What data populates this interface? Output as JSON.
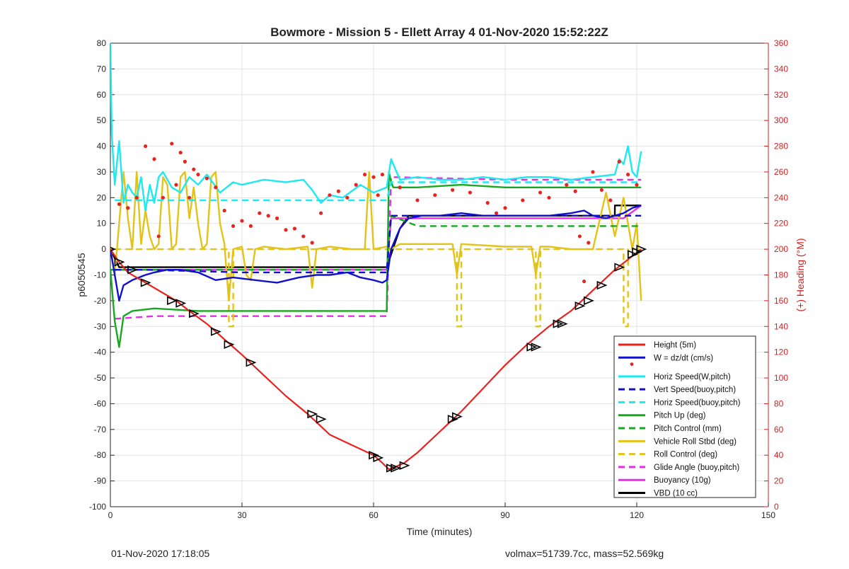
{
  "footer": {
    "left": "01-Nov-2020 17:18:05",
    "right": "volmax=51739.7cc, mass=52.569kg"
  },
  "chart_data": {
    "type": "line",
    "title": "Bowmore - Mission 5 - Ellett Array 4 01-Nov-2020 15:52:22Z",
    "xlabel": "Time (minutes)",
    "ylabel": "p6050545",
    "y2label": "(+) Heading (°M)",
    "xlim": [
      0,
      150
    ],
    "ylim": [
      -100,
      80
    ],
    "y2lim": [
      0,
      360
    ],
    "xticks": [
      0,
      30,
      60,
      90,
      120,
      150
    ],
    "yticks": [
      -100,
      -90,
      -80,
      -70,
      -60,
      -50,
      -40,
      -30,
      -20,
      -10,
      0,
      10,
      20,
      30,
      40,
      50,
      60,
      70,
      80
    ],
    "y2ticks": [
      0,
      20,
      40,
      60,
      80,
      100,
      120,
      140,
      160,
      180,
      200,
      220,
      240,
      260,
      280,
      300,
      320,
      340,
      360
    ],
    "grid": true,
    "legend_position": "bottom-right",
    "colors": {
      "red": "#e8231f",
      "blue": "#1111cc",
      "cyan": "#1ee8f0",
      "green": "#16a81e",
      "yellow": "#e3c21a",
      "magenta": "#e430e4",
      "black": "#000000",
      "right_axis": "#d42020"
    },
    "series": [
      {
        "name": "Height (5m)",
        "color": "red",
        "style": "solid",
        "x": [
          0,
          2,
          4,
          8,
          12,
          15,
          18,
          22,
          26,
          30,
          35,
          40,
          45,
          50,
          55,
          60,
          62,
          63.5,
          65,
          67,
          70,
          75,
          80,
          85,
          90,
          95,
          100,
          105,
          110,
          115,
          118,
          121
        ],
        "y": [
          0,
          -5,
          -9,
          -13,
          -17,
          -20,
          -24,
          -29,
          -35,
          -41,
          -49,
          -57,
          -64,
          -72,
          -76,
          -80,
          -83,
          -85.5,
          -84.5,
          -83,
          -79,
          -71,
          -63,
          -54,
          -45,
          -37,
          -30,
          -24,
          -16,
          -8,
          -4,
          0
        ]
      },
      {
        "name": "W = dz/dt (cm/s)",
        "color": "blue",
        "style": "solid",
        "x": [
          0,
          1,
          2,
          3,
          5,
          8,
          10,
          13,
          16,
          20,
          24,
          28,
          33,
          38,
          43,
          47,
          50,
          54,
          57,
          60,
          62,
          63,
          64,
          66,
          68,
          71,
          75,
          80,
          85,
          90,
          95,
          100,
          105,
          108,
          110,
          113,
          115,
          117,
          119,
          121
        ],
        "y": [
          0,
          -10,
          -20,
          -14,
          -12,
          -10,
          -9,
          -8,
          -8,
          -9,
          -12,
          -11,
          -12,
          -13,
          -11,
          -10,
          -10,
          -9,
          -11,
          -12,
          -13,
          -12,
          0,
          8,
          12,
          13,
          13,
          14,
          13,
          13,
          13,
          13,
          14,
          15,
          13,
          12,
          13,
          14,
          16,
          17
        ]
      },
      {
        "name": "Horiz Speed(W,pitch)",
        "color": "cyan",
        "style": "solid",
        "x": [
          0,
          0.3,
          1,
          2,
          3,
          4,
          5,
          6,
          7,
          8,
          9,
          10,
          11,
          12,
          14,
          16,
          18,
          20,
          22,
          25,
          28,
          30,
          35,
          40,
          44,
          46,
          48,
          50,
          53,
          57,
          60,
          63,
          64,
          66,
          70,
          75,
          80,
          85,
          90,
          95,
          100,
          105,
          110,
          115,
          116,
          117,
          118,
          119,
          120,
          121
        ],
        "y": [
          80,
          45,
          25,
          42,
          18,
          25,
          22,
          20,
          28,
          15,
          25,
          18,
          28,
          30,
          24,
          22,
          28,
          25,
          29,
          22,
          26,
          25,
          27,
          26,
          27,
          23,
          18,
          21,
          20,
          25,
          22,
          24,
          35,
          27,
          28,
          27,
          27,
          28,
          27,
          28,
          28,
          27,
          28,
          29,
          35,
          33,
          40,
          30,
          28,
          38
        ]
      },
      {
        "name": "Vert Speed(buoy,pitch)",
        "color": "blue",
        "style": "dashed",
        "x": [
          1,
          8,
          30,
          63,
          64,
          121
        ],
        "y": [
          -8,
          -8,
          -9,
          -9,
          13,
          13
        ]
      },
      {
        "name": "Horiz Speed(buoy,pitch)",
        "color": "cyan",
        "style": "dashed",
        "x": [
          1,
          63,
          64,
          121
        ],
        "y": [
          19,
          19,
          26,
          26
        ]
      },
      {
        "name": "Pitch Up (deg)",
        "color": "green",
        "style": "solid",
        "x": [
          0,
          1,
          2,
          3,
          5,
          10,
          20,
          30,
          40,
          50,
          60,
          63,
          63.5,
          64,
          64.5,
          66,
          70,
          80,
          90,
          100,
          110,
          120,
          121
        ],
        "y": [
          -8,
          -28,
          -38,
          -26,
          -24,
          -23,
          -24,
          -24,
          -24,
          -24,
          -24,
          -24,
          30,
          26,
          24,
          24,
          24,
          25,
          24,
          24,
          24,
          24,
          24
        ]
      },
      {
        "name": "Pitch Control (mm)",
        "color": "green",
        "style": "dashed",
        "x": [
          0,
          63,
          64,
          70,
          121
        ],
        "y": [
          -8,
          -8,
          13,
          9,
          9
        ]
      },
      {
        "name": "Vehicle Roll Stbd (deg)",
        "color": "yellow",
        "style": "solid",
        "x": [
          0,
          1,
          2,
          3,
          4,
          5,
          6,
          7,
          8,
          9,
          10,
          11,
          12,
          13,
          14,
          15,
          16,
          17,
          18,
          19,
          20,
          21,
          22,
          23,
          24,
          25,
          26,
          27,
          28,
          30,
          31,
          32,
          33,
          35,
          40,
          45,
          46,
          47,
          50,
          55,
          58,
          59,
          60,
          63,
          64,
          66,
          70,
          78,
          79,
          80,
          90,
          96,
          97,
          98,
          100,
          105,
          110,
          113,
          115,
          117,
          119,
          120,
          121
        ],
        "y": [
          1,
          -10,
          10,
          30,
          12,
          0,
          30,
          2,
          15,
          5,
          0,
          2,
          28,
          25,
          0,
          2,
          28,
          30,
          12,
          24,
          10,
          0,
          2,
          28,
          30,
          10,
          2,
          -20,
          0,
          1,
          -10,
          -12,
          0,
          1,
          0,
          1,
          -15,
          0,
          1,
          0,
          0,
          30,
          0,
          1,
          0,
          2,
          2,
          2,
          -10,
          2,
          1,
          1,
          -10,
          1,
          1,
          0,
          0,
          22,
          5,
          20,
          0,
          10,
          -20
        ]
      },
      {
        "name": "Roll Control (deg)",
        "color": "yellow",
        "style": "dashed",
        "x": [
          1,
          27,
          27.01,
          28,
          28.01,
          63,
          64,
          79,
          79.01,
          80,
          80.01,
          97,
          97.01,
          98,
          98.01,
          117,
          117.01,
          118,
          118.01,
          121
        ],
        "y": [
          0,
          0,
          -30,
          -30,
          0,
          0,
          0,
          0,
          -30,
          -30,
          0,
          0,
          -30,
          -30,
          0,
          0,
          -30,
          -30,
          0,
          0
        ]
      },
      {
        "name": "Glide Angle (buoy,pitch)",
        "color": "magenta",
        "style": "dashed",
        "x": [
          1,
          10,
          30,
          63,
          64,
          90,
          121
        ],
        "y": [
          -27,
          -26,
          -26,
          -26,
          28,
          27,
          27
        ]
      },
      {
        "name": "Buoyancy (10g)",
        "color": "magenta",
        "style": "solid",
        "x": [
          0,
          63,
          64,
          117,
          121
        ],
        "y": [
          -8,
          -8,
          12,
          12,
          17
        ]
      },
      {
        "name": "VBD (10 cc)",
        "color": "black",
        "style": "solid",
        "x": [
          0,
          2,
          2.01,
          63,
          66,
          68,
          115,
          115.01,
          121
        ],
        "y": [
          0,
          -7,
          -7,
          -7,
          8,
          13,
          13,
          17,
          17
        ]
      }
    ],
    "heading_points": {
      "color": "red",
      "axis": "right",
      "x": [
        2,
        4,
        6,
        8,
        10,
        11,
        12,
        14,
        15,
        16,
        17,
        18,
        19,
        20,
        22,
        24,
        26,
        28,
        30,
        32,
        34,
        36,
        38,
        40,
        42,
        44,
        46,
        48,
        50,
        52,
        54,
        56,
        58,
        60,
        61,
        62,
        66,
        70,
        74,
        78,
        82,
        86,
        88,
        90,
        94,
        98,
        100,
        104,
        106,
        107,
        108,
        109,
        110,
        112,
        114,
        116,
        118,
        120
      ],
      "y": [
        235,
        232,
        240,
        280,
        270,
        210,
        240,
        282,
        250,
        275,
        268,
        240,
        262,
        258,
        255,
        248,
        230,
        218,
        222,
        218,
        228,
        226,
        224,
        215,
        216,
        210,
        205,
        228,
        242,
        245,
        240,
        250,
        258,
        256,
        242,
        258,
        248,
        238,
        242,
        246,
        244,
        236,
        228,
        232,
        238,
        244,
        240,
        250,
        245,
        210,
        175,
        205,
        260,
        246,
        238,
        268,
        258,
        250
      ]
    },
    "height_markers": {
      "x": [
        0,
        2,
        5,
        8,
        14,
        16,
        19,
        24,
        27,
        32,
        46,
        48,
        60,
        61,
        64,
        65,
        67,
        78,
        79,
        96,
        97,
        102,
        103,
        107,
        109,
        112,
        116,
        119,
        120,
        121
      ],
      "y": [
        0,
        -5,
        -8,
        -13,
        -20,
        -21,
        -25,
        -32,
        -37,
        -44,
        -64,
        -66,
        -80,
        -81,
        -85,
        -85,
        -84,
        -66,
        -65,
        -38,
        -38,
        -29,
        -29,
        -22,
        -20,
        -14,
        -7,
        -2,
        -1,
        0
      ]
    }
  }
}
